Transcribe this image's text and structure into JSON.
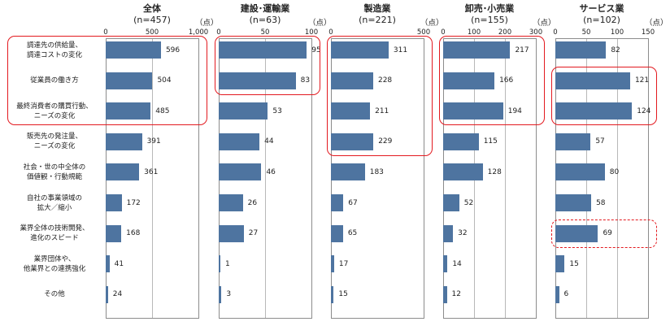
{
  "chart_data": {
    "type": "bar",
    "unit_label": "（点）",
    "categories": [
      [
        "調達先の供給量、",
        "調達コストの変化"
      ],
      [
        "従業員の働き方"
      ],
      [
        "最終消費者の購買行動、",
        "ニーズの変化"
      ],
      [
        "販売先の発注量、",
        "ニーズの変化"
      ],
      [
        "社会・世の中全体の",
        "価値観・行動規範"
      ],
      [
        "自社の事業領域の",
        "拡大／縮小"
      ],
      [
        "業界全体の技術開発、",
        "進化のスピード"
      ],
      [
        "業界団体や、",
        "他業界との連携強化"
      ],
      [
        "その他"
      ]
    ],
    "panels": [
      {
        "title": "全体",
        "n": "(n=457)",
        "xlim": [
          0,
          1000
        ],
        "ticks": [
          "0",
          "500",
          "1,000"
        ],
        "tick_values": [
          0,
          500,
          1000
        ],
        "show_unit": true,
        "values": [
          596,
          504,
          485,
          391,
          361,
          172,
          168,
          41,
          24
        ],
        "highlights": [
          {
            "rows": [
              0,
              2
            ],
            "style": "solid"
          }
        ]
      },
      {
        "title": "建設･運輸業",
        "n": "(n=63)",
        "xlim": [
          0,
          100
        ],
        "ticks": [
          "0",
          "50",
          "100"
        ],
        "tick_values": [
          0,
          50,
          100
        ],
        "show_unit": true,
        "values": [
          95,
          83,
          53,
          44,
          46,
          26,
          27,
          1,
          3
        ],
        "highlights": [
          {
            "rows": [
              0,
              1
            ],
            "style": "solid"
          }
        ]
      },
      {
        "title": "製造業",
        "n": "(n=221)",
        "xlim": [
          0,
          500
        ],
        "ticks": [
          "0",
          "500"
        ],
        "tick_values": [
          0,
          500
        ],
        "show_unit": true,
        "values": [
          311,
          228,
          211,
          229,
          183,
          67,
          65,
          17,
          15
        ],
        "highlights": [
          {
            "rows": [
              0,
              3
            ],
            "style": "solid"
          }
        ]
      },
      {
        "title": "卸売･小売業",
        "n": "(n=155)",
        "xlim": [
          0,
          300
        ],
        "ticks": [
          "0",
          "100",
          "200",
          "300"
        ],
        "tick_values": [
          0,
          100,
          200,
          300
        ],
        "show_unit": true,
        "values": [
          217,
          166,
          194,
          115,
          128,
          52,
          32,
          14,
          12
        ],
        "highlights": [
          {
            "rows": [
              0,
              2
            ],
            "style": "solid"
          }
        ]
      },
      {
        "title": "サービス業",
        "n": "(n=102)",
        "xlim": [
          0,
          150
        ],
        "ticks": [
          "0",
          "50",
          "100",
          "150"
        ],
        "tick_values": [
          0,
          50,
          100,
          150
        ],
        "show_unit": true,
        "values": [
          82,
          121,
          124,
          57,
          80,
          58,
          69,
          15,
          6
        ],
        "highlights": [
          {
            "rows": [
              1,
              2
            ],
            "style": "solid"
          },
          {
            "rows": [
              6,
              6
            ],
            "style": "dashed"
          }
        ]
      }
    ],
    "colors": {
      "bar": "#4e74a0",
      "highlight": "#e3191f"
    }
  }
}
